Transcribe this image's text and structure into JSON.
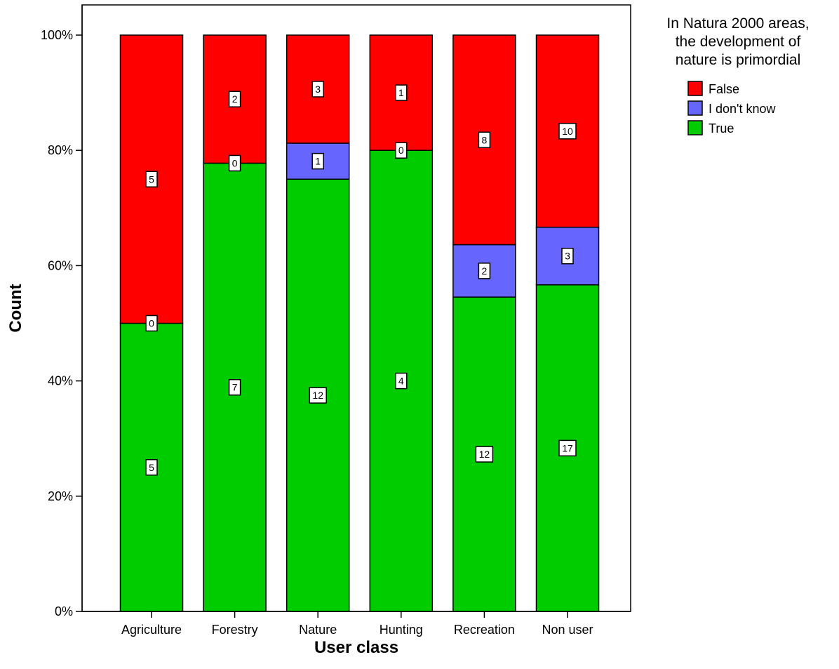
{
  "chart_data": {
    "type": "bar",
    "stacked": true,
    "normalized": true,
    "xlabel": "User class",
    "ylabel": "Count",
    "ylim": [
      0,
      100
    ],
    "yticks": [
      "0%",
      "20%",
      "40%",
      "60%",
      "80%",
      "100%"
    ],
    "categories": [
      "Agriculture",
      "Forestry",
      "Nature",
      "Hunting",
      "Recreation",
      "Non user"
    ],
    "legend": {
      "title_lines": [
        "In Natura 2000 areas,",
        "the development of",
        "nature is primordial"
      ],
      "placement": "right"
    },
    "series": [
      {
        "name": "True",
        "color": "#00cc00",
        "values": [
          5,
          7,
          12,
          4,
          12,
          17
        ]
      },
      {
        "name": "I don't know",
        "color": "#6666ff",
        "values": [
          0,
          0,
          1,
          0,
          2,
          3
        ]
      },
      {
        "name": "False",
        "color": "#ff0000",
        "values": [
          5,
          2,
          3,
          1,
          8,
          10
        ]
      }
    ],
    "legend_order": [
      "False",
      "I don't know",
      "True"
    ]
  }
}
